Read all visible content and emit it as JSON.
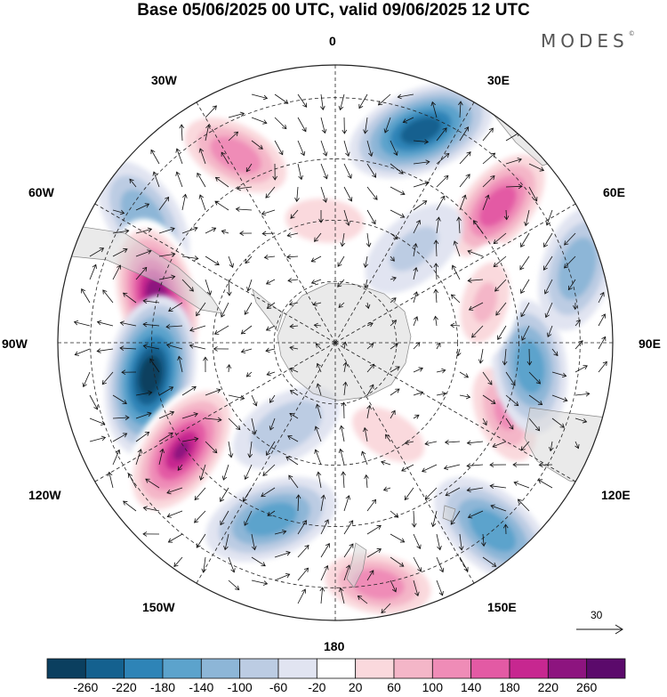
{
  "title": "Base 05/06/2025 00 UTC, valid 09/06/2025 12 UTC",
  "brand": "MODES",
  "brand_mark": "©",
  "longitude_labels": {
    "lon_0": "0",
    "lon_30e": "30E",
    "lon_60e": "60E",
    "lon_90e": "90E",
    "lon_120e": "120E",
    "lon_150e": "150E",
    "lon_180": "180",
    "lon_150w": "150W",
    "lon_120w": "120W",
    "lon_90w": "90W",
    "lon_60w": "60W",
    "lon_30w": "30W"
  },
  "reference_vector": {
    "label": "30"
  },
  "colorbar": {
    "ticks": [
      "-260",
      "-220",
      "-180",
      "-140",
      "-100",
      "-60",
      "-20",
      "20",
      "60",
      "100",
      "140",
      "180",
      "220",
      "260"
    ],
    "colors": [
      "#0b3f5f",
      "#14618f",
      "#2e84b7",
      "#5ca3cc",
      "#8db6d7",
      "#bccce3",
      "#e1e4f1",
      "#ffffff",
      "#fad9dd",
      "#f4b6c8",
      "#ef8cb7",
      "#e35aa4",
      "#c72790",
      "#8d147f",
      "#5b0a6b"
    ]
  },
  "anomalies": [
    {
      "name": "p-30w",
      "lon": -28,
      "colat": 52,
      "value": 150
    },
    {
      "name": "n-20e",
      "lon": 22,
      "colat": 56,
      "value": -210
    },
    {
      "name": "p-50e",
      "lon": 50,
      "colat": 52,
      "value": 190
    },
    {
      "name": "n-55w",
      "lon": -57,
      "colat": 56,
      "value": -100
    },
    {
      "name": "p-10w-mid",
      "lon": -5,
      "colat": 30,
      "value": 55
    },
    {
      "name": "p-75w",
      "lon": -76,
      "colat": 45,
      "value": 260
    },
    {
      "name": "n-100w",
      "lon": -100,
      "colat": 46,
      "value": -260
    },
    {
      "name": "p-125w",
      "lon": -125,
      "colat": 46,
      "value": 240
    },
    {
      "name": "n-160w",
      "lon": -160,
      "colat": 46,
      "value": -140
    },
    {
      "name": "p-170e",
      "lon": 170,
      "colat": 60,
      "value": 130
    },
    {
      "name": "n-140e",
      "lon": 140,
      "colat": 60,
      "value": -150
    },
    {
      "name": "p-115e",
      "lon": 113,
      "colat": 45,
      "value": 120
    },
    {
      "name": "n-95e",
      "lon": 97,
      "colat": 48,
      "value": -130
    },
    {
      "name": "p-75e",
      "lon": 75,
      "colat": 38,
      "value": 80
    },
    {
      "name": "n-70e-outer",
      "lon": 73,
      "colat": 62,
      "value": -100
    },
    {
      "name": "n-40e-mid",
      "lon": 40,
      "colat": 30,
      "value": -40
    },
    {
      "name": "p-150e-in",
      "lon": 150,
      "colat": 26,
      "value": 60
    },
    {
      "name": "n-150w-in",
      "lon": -150,
      "colat": 24,
      "value": -50
    }
  ]
}
